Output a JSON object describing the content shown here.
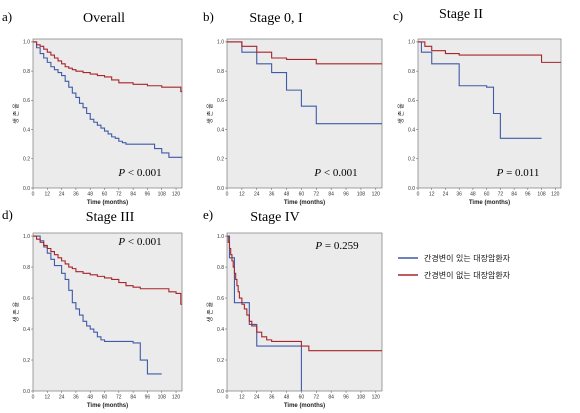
{
  "chart_data": [
    {
      "type": "line",
      "letter": "a)",
      "title": "Overall",
      "xlabel": "Time (months)",
      "ylabel": "생 존 율",
      "xticks": [
        0,
        12,
        24,
        36,
        48,
        60,
        72,
        84,
        96,
        108,
        120
      ],
      "yticks": [
        "0.0",
        "0.2",
        "0.4",
        "0.6",
        "0.8",
        "1.0"
      ],
      "xlim": [
        0,
        125
      ],
      "ylim": [
        0,
        1.02
      ],
      "pvalue": "P < 0.001",
      "series": [
        {
          "name": "간경변이 있는 대장암환자",
          "color": "#3f5aa8",
          "x": [
            0,
            3,
            6,
            9,
            12,
            15,
            18,
            21,
            24,
            27,
            30,
            33,
            36,
            39,
            42,
            45,
            48,
            51,
            54,
            57,
            60,
            63,
            66,
            69,
            72,
            75,
            78,
            84,
            90,
            96,
            102,
            108,
            114,
            120,
            125
          ],
          "y": [
            1.0,
            0.96,
            0.92,
            0.89,
            0.86,
            0.83,
            0.81,
            0.79,
            0.77,
            0.73,
            0.69,
            0.65,
            0.62,
            0.58,
            0.55,
            0.51,
            0.47,
            0.45,
            0.43,
            0.41,
            0.39,
            0.37,
            0.35,
            0.34,
            0.32,
            0.31,
            0.3,
            0.3,
            0.3,
            0.3,
            0.27,
            0.24,
            0.21,
            0.21,
            0.21
          ]
        },
        {
          "name": "간경변이 없는 대장암환자",
          "color": "#a8252b",
          "x": [
            0,
            3,
            6,
            9,
            12,
            15,
            18,
            21,
            24,
            27,
            30,
            33,
            36,
            39,
            42,
            45,
            48,
            54,
            60,
            66,
            72,
            78,
            84,
            90,
            96,
            102,
            108,
            114,
            120,
            124,
            125
          ],
          "y": [
            1.0,
            0.98,
            0.97,
            0.95,
            0.93,
            0.91,
            0.89,
            0.87,
            0.85,
            0.83,
            0.82,
            0.81,
            0.8,
            0.8,
            0.79,
            0.79,
            0.78,
            0.77,
            0.76,
            0.74,
            0.72,
            0.72,
            0.71,
            0.71,
            0.7,
            0.7,
            0.69,
            0.69,
            0.69,
            0.66,
            0.66
          ]
        }
      ]
    },
    {
      "type": "line",
      "letter": "b)",
      "title": "Stage 0, I",
      "xlabel": "Time (months)",
      "ylabel": "생 존 율",
      "xticks": [
        0,
        12,
        24,
        36,
        48,
        60,
        72,
        84,
        96,
        108,
        120
      ],
      "yticks": [
        "0.0",
        "0.2",
        "0.4",
        "0.6",
        "0.8",
        "1.0"
      ],
      "xlim": [
        0,
        125
      ],
      "ylim": [
        0,
        1.02
      ],
      "pvalue": "P < 0.001",
      "series": [
        {
          "name": "간경변이 있는 대장암환자",
          "color": "#3f5aa8",
          "x": [
            0,
            12,
            12,
            24,
            24,
            36,
            36,
            48,
            48,
            60,
            60,
            72,
            72,
            125
          ],
          "y": [
            1.0,
            1.0,
            0.93,
            0.93,
            0.85,
            0.85,
            0.79,
            0.79,
            0.67,
            0.67,
            0.56,
            0.56,
            0.44,
            0.44
          ]
        },
        {
          "name": "간경변이 없는 대장암환자",
          "color": "#a8252b",
          "x": [
            0,
            12,
            12,
            24,
            24,
            36,
            36,
            48,
            48,
            72,
            72,
            125
          ],
          "y": [
            1.0,
            1.0,
            0.97,
            0.97,
            0.93,
            0.93,
            0.89,
            0.89,
            0.88,
            0.88,
            0.85,
            0.85
          ]
        }
      ]
    },
    {
      "type": "line",
      "letter": "c)",
      "title": "Stage II",
      "xlabel": "Time (months)",
      "ylabel": "생 존 율",
      "xticks": [
        0,
        12,
        24,
        36,
        48,
        60,
        72,
        84,
        96,
        108,
        120
      ],
      "yticks": [
        "0.0",
        "0.2",
        "0.4",
        "0.6",
        "0.8",
        "1.0"
      ],
      "xlim": [
        0,
        125
      ],
      "ylim": [
        0,
        1.02
      ],
      "pvalue": "P = 0.011",
      "series": [
        {
          "name": "간경변이 있는 대장암환자",
          "color": "#3f5aa8",
          "x": [
            0,
            3,
            3,
            12,
            12,
            36,
            36,
            60,
            60,
            66,
            66,
            72,
            72,
            108
          ],
          "y": [
            1.0,
            1.0,
            0.93,
            0.93,
            0.85,
            0.85,
            0.7,
            0.7,
            0.69,
            0.69,
            0.51,
            0.51,
            0.34,
            0.34
          ]
        },
        {
          "name": "간경변이 없는 대장암환자",
          "color": "#a8252b",
          "x": [
            0,
            6,
            6,
            12,
            12,
            24,
            24,
            36,
            36,
            108,
            108,
            125
          ],
          "y": [
            1.0,
            1.0,
            0.97,
            0.97,
            0.94,
            0.94,
            0.92,
            0.92,
            0.91,
            0.91,
            0.86,
            0.86
          ]
        }
      ]
    },
    {
      "type": "line",
      "letter": "d)",
      "title": "Stage III",
      "xlabel": "Time (months)",
      "ylabel": "생 존 율",
      "xticks": [
        0,
        12,
        24,
        36,
        48,
        60,
        72,
        84,
        96,
        108,
        120
      ],
      "yticks": [
        "0.0",
        "0.2",
        "0.4",
        "0.6",
        "0.8",
        "1.0"
      ],
      "xlim": [
        0,
        125
      ],
      "ylim": [
        0,
        1.02
      ],
      "pvalue": "P < 0.001",
      "series": [
        {
          "name": "간경변이 있는 대장암환자",
          "color": "#3f5aa8",
          "x": [
            0,
            6,
            9,
            12,
            15,
            18,
            24,
            27,
            30,
            33,
            36,
            39,
            42,
            45,
            48,
            51,
            54,
            57,
            60,
            66,
            72,
            84,
            90,
            96,
            102,
            108
          ],
          "y": [
            1.0,
            0.97,
            0.93,
            0.89,
            0.85,
            0.81,
            0.76,
            0.72,
            0.65,
            0.57,
            0.53,
            0.49,
            0.45,
            0.42,
            0.4,
            0.38,
            0.35,
            0.33,
            0.32,
            0.32,
            0.32,
            0.31,
            0.2,
            0.11,
            0.11,
            0.11
          ]
        },
        {
          "name": "간경변이 없는 대장암환자",
          "color": "#a8252b",
          "x": [
            0,
            3,
            6,
            9,
            12,
            15,
            18,
            21,
            24,
            27,
            30,
            33,
            36,
            42,
            48,
            54,
            60,
            66,
            72,
            78,
            84,
            90,
            96,
            102,
            108,
            114,
            120,
            124,
            125
          ],
          "y": [
            1.0,
            0.98,
            0.96,
            0.94,
            0.92,
            0.9,
            0.88,
            0.86,
            0.84,
            0.82,
            0.8,
            0.79,
            0.77,
            0.76,
            0.75,
            0.74,
            0.73,
            0.72,
            0.7,
            0.68,
            0.67,
            0.66,
            0.66,
            0.66,
            0.66,
            0.64,
            0.63,
            0.56,
            0.56
          ]
        }
      ]
    },
    {
      "type": "line",
      "letter": "e)",
      "title": "Stage IV",
      "xlabel": "Time (months)",
      "ylabel": "생 존 율",
      "xticks": [
        0,
        12,
        24,
        36,
        48,
        60,
        72,
        84,
        96,
        108,
        120
      ],
      "yticks": [
        "0.0",
        "0.2",
        "0.4",
        "0.6",
        "0.8",
        "1.0"
      ],
      "xlim": [
        0,
        125
      ],
      "ylim": [
        0,
        1.02
      ],
      "pvalue": "P = 0.259",
      "series": [
        {
          "name": "간경변이 있는 대장암환자",
          "color": "#3f5aa8",
          "x": [
            0,
            2,
            2,
            6,
            6,
            12,
            12,
            18,
            18,
            24,
            24,
            30,
            30,
            60,
            60
          ],
          "y": [
            1.0,
            1.0,
            0.86,
            0.86,
            0.57,
            0.57,
            0.57,
            0.57,
            0.43,
            0.43,
            0.29,
            0.29,
            0.29,
            0.29,
            0.0
          ]
        },
        {
          "name": "간경변이 없는 대장암환자",
          "color": "#a8252b",
          "x": [
            0,
            1,
            2,
            3,
            4,
            5,
            6,
            7,
            8,
            9,
            10,
            12,
            14,
            16,
            18,
            20,
            24,
            28,
            32,
            36,
            48,
            60,
            66,
            72,
            84,
            96,
            108,
            125
          ],
          "y": [
            1.0,
            0.96,
            0.92,
            0.88,
            0.84,
            0.8,
            0.76,
            0.72,
            0.68,
            0.64,
            0.6,
            0.56,
            0.53,
            0.49,
            0.45,
            0.42,
            0.38,
            0.35,
            0.33,
            0.32,
            0.32,
            0.29,
            0.26,
            0.26,
            0.26,
            0.26,
            0.26,
            0.26
          ]
        }
      ]
    }
  ],
  "legend": [
    {
      "label": "간경변이 있는 대장암환자",
      "color": "#3f5aa8"
    },
    {
      "label": "간경변이 없는 대장암환자",
      "color": "#a8252b"
    }
  ]
}
